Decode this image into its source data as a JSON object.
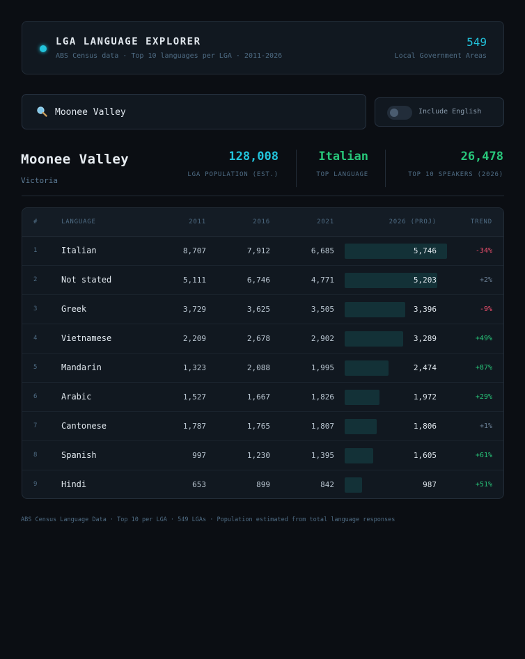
{
  "header": {
    "title": "LGA LANGUAGE EXPLORER",
    "subtitle": "ABS Census data · Top 10 languages per LGA · 2011-2026",
    "lga_count": "549",
    "lga_count_label": "Local Government Areas"
  },
  "search": {
    "value": "Moonee Valley",
    "icon": "search-icon"
  },
  "toggle": {
    "label": "Include English",
    "checked": false
  },
  "summary": {
    "lga_name": "Moonee Valley",
    "state": "Victoria",
    "population_value": "128,008",
    "population_label": "LGA POPULATION (EST.)",
    "top_language_value": "Italian",
    "top_language_label": "TOP LANGUAGE",
    "speakers_value": "26,478",
    "speakers_label": "TOP 10 SPEAKERS (2026)"
  },
  "colors": {
    "accent": "#22c3db",
    "positive": "#28c77a",
    "negative": "#f0506e",
    "neutral": "#6b8096",
    "bar": "#133137"
  },
  "table": {
    "columns": [
      "#",
      "LANGUAGE",
      "2011",
      "2016",
      "2021",
      "2026 (PROJ)",
      "TREND"
    ],
    "rows": [
      {
        "rank": "1",
        "language": "Italian",
        "y2011": "8,707",
        "y2016": "7,912",
        "y2021": "6,685",
        "y2026": "5,746",
        "trend": "-34%",
        "trend_dir": "negative",
        "value_2026": 5746
      },
      {
        "rank": "2",
        "language": "Not stated",
        "y2011": "5,111",
        "y2016": "6,746",
        "y2021": "4,771",
        "y2026": "5,203",
        "trend": "+2%",
        "trend_dir": "neutral",
        "value_2026": 5203
      },
      {
        "rank": "3",
        "language": "Greek",
        "y2011": "3,729",
        "y2016": "3,625",
        "y2021": "3,505",
        "y2026": "3,396",
        "trend": "-9%",
        "trend_dir": "negative",
        "value_2026": 3396
      },
      {
        "rank": "4",
        "language": "Vietnamese",
        "y2011": "2,209",
        "y2016": "2,678",
        "y2021": "2,902",
        "y2026": "3,289",
        "trend": "+49%",
        "trend_dir": "positive",
        "value_2026": 3289
      },
      {
        "rank": "5",
        "language": "Mandarin",
        "y2011": "1,323",
        "y2016": "2,088",
        "y2021": "1,995",
        "y2026": "2,474",
        "trend": "+87%",
        "trend_dir": "positive",
        "value_2026": 2474
      },
      {
        "rank": "6",
        "language": "Arabic",
        "y2011": "1,527",
        "y2016": "1,667",
        "y2021": "1,826",
        "y2026": "1,972",
        "trend": "+29%",
        "trend_dir": "positive",
        "value_2026": 1972
      },
      {
        "rank": "7",
        "language": "Cantonese",
        "y2011": "1,787",
        "y2016": "1,765",
        "y2021": "1,807",
        "y2026": "1,806",
        "trend": "+1%",
        "trend_dir": "neutral",
        "value_2026": 1806
      },
      {
        "rank": "8",
        "language": "Spanish",
        "y2011": "997",
        "y2016": "1,230",
        "y2021": "1,395",
        "y2026": "1,605",
        "trend": "+61%",
        "trend_dir": "positive",
        "value_2026": 1605
      },
      {
        "rank": "9",
        "language": "Hindi",
        "y2011": "653",
        "y2016": "899",
        "y2021": "842",
        "y2026": "987",
        "trend": "+51%",
        "trend_dir": "positive",
        "value_2026": 987
      }
    ]
  },
  "footer": {
    "text": "ABS Census Language Data · Top 10 per LGA · 549 LGAs · Population estimated from total language responses"
  }
}
